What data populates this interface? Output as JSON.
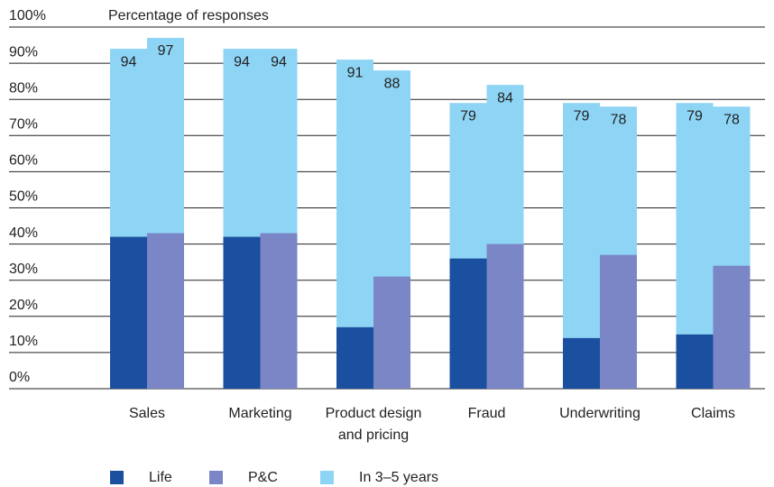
{
  "chart_data": {
    "type": "bar",
    "ylabel": "Percentage of responses",
    "categories": [
      "Sales",
      "Marketing",
      "Product design\nand pricing",
      "Fraud",
      "Underwriting",
      "Claims"
    ],
    "series": [
      {
        "name": "Life",
        "color": "#1b4f9f",
        "values": [
          42,
          42,
          17,
          36,
          14,
          15
        ]
      },
      {
        "name": "P&C",
        "color": "#7a86c5",
        "values": [
          43,
          43,
          31,
          40,
          37,
          34
        ]
      }
    ],
    "future": {
      "name": "In 3–5 years",
      "color": "#8ed4f5",
      "values": [
        [
          94,
          97
        ],
        [
          94,
          94
        ],
        [
          91,
          88
        ],
        [
          79,
          84
        ],
        [
          79,
          78
        ],
        [
          79,
          78
        ]
      ]
    },
    "ylim": [
      0,
      100
    ],
    "yticks": [
      {
        "value": 0,
        "label": "0%"
      },
      {
        "value": 10,
        "label": "10%"
      },
      {
        "value": 20,
        "label": "20%"
      },
      {
        "value": 30,
        "label": "30%"
      },
      {
        "value": 40,
        "label": "40%"
      },
      {
        "value": 50,
        "label": "50%"
      },
      {
        "value": 60,
        "label": "60%"
      },
      {
        "value": 70,
        "label": "70%"
      },
      {
        "value": 80,
        "label": "80%"
      },
      {
        "value": 90,
        "label": "90%"
      },
      {
        "value": 100,
        "label": "100%"
      }
    ],
    "grid": true
  }
}
